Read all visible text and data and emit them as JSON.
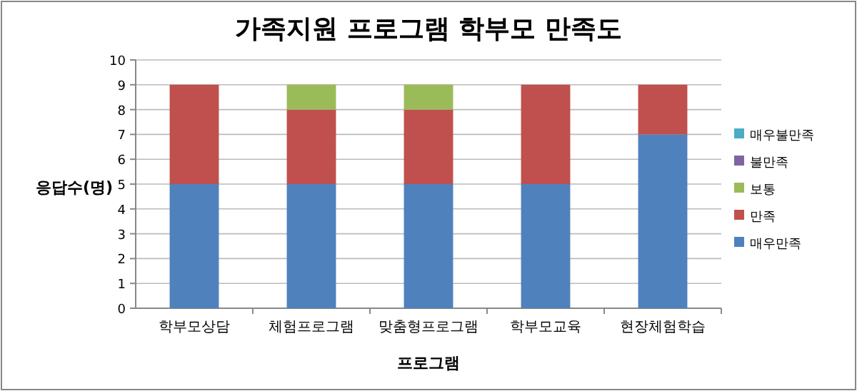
{
  "chart_data": {
    "type": "bar",
    "stacked": true,
    "title": "가족지원 프로그램 학부모 만족도",
    "xlabel": "프로그램",
    "ylabel": "응답수(명)",
    "categories": [
      "학부모상담",
      "체험프로그램",
      "맞춤형프로그램",
      "학부모교육",
      "현장체험학습"
    ],
    "series": [
      {
        "name": "매우만족",
        "color": "#4f81bd",
        "values": [
          5,
          5,
          5,
          5,
          7
        ]
      },
      {
        "name": "만족",
        "color": "#c0504d",
        "values": [
          4,
          3,
          3,
          4,
          2
        ]
      },
      {
        "name": "보통",
        "color": "#9bbb59",
        "values": [
          0,
          1,
          1,
          0,
          0
        ]
      },
      {
        "name": "불만족",
        "color": "#8064a2",
        "values": [
          0,
          0,
          0,
          0,
          0
        ]
      },
      {
        "name": "매우불만족",
        "color": "#4bacc6",
        "values": [
          0,
          0,
          0,
          0,
          0
        ]
      }
    ],
    "ylim": [
      0,
      10
    ],
    "yticks": [
      0,
      1,
      2,
      3,
      4,
      5,
      6,
      7,
      8,
      9,
      10
    ],
    "grid": "y",
    "legend": "right"
  }
}
